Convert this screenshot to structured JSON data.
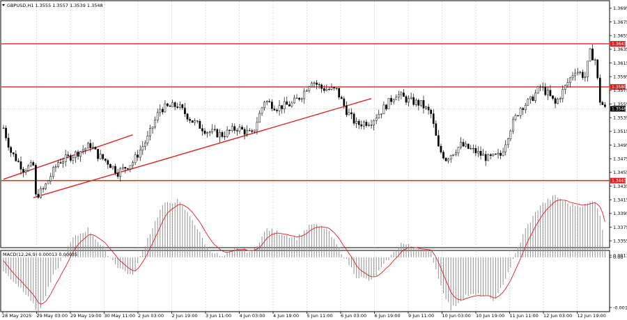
{
  "chart_data": [
    {
      "type": "candlestick",
      "title": "GBPUSD,H1  1.3555 1.3557 1.3539 1.3548",
      "ylim": [
        1.3345,
        1.3705
      ],
      "y_ticks": [
        "1.3695",
        "1.3675",
        "1.3655",
        "1.3635",
        "1.3615",
        "1.3595",
        "1.3575",
        "1.3555",
        "1.3535",
        "1.3515",
        "1.3495",
        "1.3475",
        "1.3455",
        "1.3435",
        "1.3415",
        "1.3395",
        "1.3375",
        "1.3355"
      ],
      "x_ticks": [
        "28 May 2025",
        "29 May 03:00",
        "29 May 19:00",
        "30 May 11:00",
        "2 Jun 03:00",
        "2 Jun 19:00",
        "3 Jun 11:00",
        "4 Jun 03:00",
        "4 Jun 19:00",
        "5 Jun 11:00",
        "6 Jun 03:00",
        "6 Jun 19:00",
        "9 Jun 11:00",
        "10 Jun 03:00",
        "10 Jun 19:00",
        "11 Jun 11:00",
        "12 Jun 03:00",
        "12 Jun 19:00"
      ],
      "current_price": "1.3548",
      "levels": [
        {
          "price": 1.3643,
          "label": "1.3643",
          "color": "#e02020"
        },
        {
          "price": 1.358,
          "label": "1.3580",
          "color": "#e02020"
        },
        {
          "price": 1.3443,
          "label": "1.3443",
          "color": "#e02020"
        }
      ],
      "trendlines": [
        {
          "from": [
            0,
            1.3445
          ],
          "to": [
            52,
            1.351
          ],
          "color": "#e02020"
        },
        {
          "from": [
            12,
            1.3418
          ],
          "to": [
            148,
            1.3563
          ],
          "color": "#e02020"
        }
      ],
      "path": [
        [
          0,
          1.352
        ],
        [
          3,
          1.3485
        ],
        [
          8,
          1.346
        ],
        [
          12,
          1.3465
        ],
        [
          13,
          1.342
        ],
        [
          16,
          1.343
        ],
        [
          22,
          1.347
        ],
        [
          28,
          1.348
        ],
        [
          35,
          1.3495
        ],
        [
          38,
          1.348
        ],
        [
          42,
          1.347
        ],
        [
          46,
          1.3455
        ],
        [
          52,
          1.347
        ],
        [
          58,
          1.3505
        ],
        [
          63,
          1.3548
        ],
        [
          70,
          1.3553
        ],
        [
          76,
          1.353
        ],
        [
          82,
          1.3515
        ],
        [
          88,
          1.351
        ],
        [
          94,
          1.352
        ],
        [
          100,
          1.351
        ],
        [
          105,
          1.356
        ],
        [
          110,
          1.355
        ],
        [
          116,
          1.3555
        ],
        [
          120,
          1.3568
        ],
        [
          124,
          1.359
        ],
        [
          128,
          1.3578
        ],
        [
          134,
          1.3575
        ],
        [
          138,
          1.3545
        ],
        [
          142,
          1.3525
        ],
        [
          148,
          1.353
        ],
        [
          152,
          1.3545
        ],
        [
          158,
          1.357
        ],
        [
          163,
          1.356
        ],
        [
          168,
          1.3555
        ],
        [
          172,
          1.354
        ],
        [
          175,
          1.349
        ],
        [
          178,
          1.3475
        ],
        [
          184,
          1.3495
        ],
        [
          190,
          1.3485
        ],
        [
          195,
          1.3475
        ],
        [
          200,
          1.348
        ],
        [
          204,
          1.352
        ],
        [
          208,
          1.355
        ],
        [
          212,
          1.356
        ],
        [
          216,
          1.358
        ],
        [
          219,
          1.357
        ],
        [
          222,
          1.3555
        ],
        [
          226,
          1.358
        ],
        [
          230,
          1.3605
        ],
        [
          234,
          1.3595
        ],
        [
          236,
          1.363
        ],
        [
          238,
          1.362
        ],
        [
          240,
          1.356
        ],
        [
          242,
          1.3548
        ]
      ]
    },
    {
      "type": "histogram",
      "title": "MACD(12,26,9) 0.00013 0.00035",
      "ylim": [
        -0.00113,
        0.00013
      ],
      "y_ticks": [
        "0.0013",
        "0.00",
        "-0.00113"
      ],
      "series_path": [
        [
          0,
          -0.0003
        ],
        [
          10,
          -0.0008
        ],
        [
          14,
          -0.0012
        ],
        [
          20,
          -0.0004
        ],
        [
          28,
          0.0004
        ],
        [
          34,
          0.0006
        ],
        [
          40,
          0.0002
        ],
        [
          46,
          -0.0002
        ],
        [
          52,
          -0.0004
        ],
        [
          58,
          0.0004
        ],
        [
          64,
          0.0011
        ],
        [
          70,
          0.0012
        ],
        [
          76,
          0.0008
        ],
        [
          82,
          0.0002
        ],
        [
          88,
          0.0
        ],
        [
          94,
          0.0002
        ],
        [
          100,
          0.0001
        ],
        [
          106,
          0.0006
        ],
        [
          112,
          0.0005
        ],
        [
          118,
          0.0004
        ],
        [
          124,
          0.0007
        ],
        [
          130,
          0.0006
        ],
        [
          136,
          0.0001
        ],
        [
          142,
          -0.0004
        ],
        [
          148,
          -0.0005
        ],
        [
          154,
          -0.0001
        ],
        [
          160,
          0.0003
        ],
        [
          166,
          0.0002
        ],
        [
          172,
          0.0001
        ],
        [
          176,
          -0.0006
        ],
        [
          180,
          -0.0011
        ],
        [
          186,
          -0.0008
        ],
        [
          192,
          -0.0008
        ],
        [
          198,
          -0.0009
        ],
        [
          204,
          -0.0002
        ],
        [
          210,
          0.0006
        ],
        [
          216,
          0.0011
        ],
        [
          222,
          0.0013
        ],
        [
          228,
          0.0011
        ],
        [
          234,
          0.0011
        ],
        [
          238,
          0.0012
        ],
        [
          240,
          0.0009
        ],
        [
          242,
          0.0002
        ]
      ],
      "colors": {
        "bars": "#909090",
        "signal": "#e02020"
      }
    }
  ]
}
